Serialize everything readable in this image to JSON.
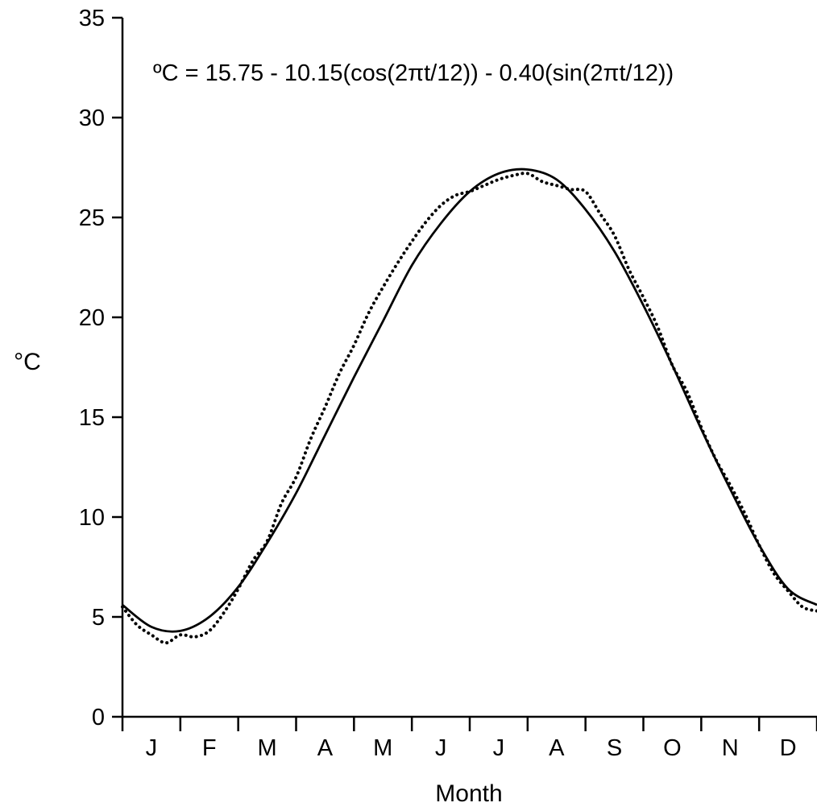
{
  "chart_data": {
    "type": "line",
    "title": "",
    "xlabel": "Month",
    "ylabel": "°C",
    "annotation": "ºC = 15.75 - 10.15(cos(2πt/12)) - 0.40(sin(2πt/12))",
    "categories": [
      "J",
      "F",
      "M",
      "A",
      "M",
      "J",
      "J",
      "A",
      "S",
      "O",
      "N",
      "D"
    ],
    "xlim": [
      0,
      12
    ],
    "ylim": [
      0,
      35
    ],
    "yticks": [
      0,
      5,
      10,
      15,
      20,
      25,
      30,
      35
    ],
    "grid": false,
    "legend": "none",
    "model": {
      "intercept": 15.75,
      "cos_coef": -10.15,
      "sin_coef": -0.4,
      "period": 12
    },
    "series": [
      {
        "style": "solid-line",
        "color": "#000000",
        "x": [
          0,
          0.5,
          1,
          1.5,
          2,
          2.5,
          3,
          3.5,
          4,
          4.5,
          5,
          5.5,
          6,
          6.5,
          7,
          7.5,
          8,
          8.5,
          9,
          9.5,
          10,
          10.5,
          11,
          11.5,
          12
        ],
        "values": [
          5.6,
          4.5,
          4.3,
          5.0,
          6.5,
          8.7,
          11.2,
          14.1,
          17.0,
          19.8,
          22.6,
          24.7,
          26.3,
          27.2,
          27.4,
          26.9,
          25.4,
          23.3,
          20.6,
          17.6,
          14.4,
          11.4,
          8.6,
          6.4,
          5.6
        ]
      },
      {
        "style": "dotted-line",
        "color": "#000000",
        "x": [
          0,
          0.25,
          0.5,
          0.75,
          1,
          1.25,
          1.5,
          1.75,
          2,
          2.25,
          2.5,
          2.75,
          3,
          3.25,
          3.5,
          3.75,
          4,
          4.25,
          4.5,
          4.75,
          5,
          5.25,
          5.5,
          5.75,
          6,
          6.25,
          6.5,
          6.75,
          7,
          7.25,
          7.5,
          7.75,
          8,
          8.25,
          8.5,
          8.75,
          9,
          9.25,
          9.5,
          9.75,
          10,
          10.25,
          10.5,
          10.75,
          11,
          11.25,
          11.5,
          11.75,
          12
        ],
        "values": [
          5.5,
          4.6,
          4.1,
          3.7,
          4.1,
          4.0,
          4.3,
          5.2,
          6.4,
          7.8,
          8.8,
          10.7,
          12.0,
          13.9,
          15.5,
          17.2,
          18.6,
          20.2,
          21.5,
          22.7,
          23.8,
          24.8,
          25.6,
          26.1,
          26.3,
          26.6,
          26.9,
          27.1,
          27.2,
          26.8,
          26.6,
          26.4,
          26.3,
          25.2,
          24.1,
          22.4,
          21.0,
          19.5,
          17.6,
          16.3,
          14.5,
          12.9,
          11.6,
          10.2,
          8.6,
          7.2,
          6.3,
          5.5,
          5.3
        ]
      }
    ]
  }
}
